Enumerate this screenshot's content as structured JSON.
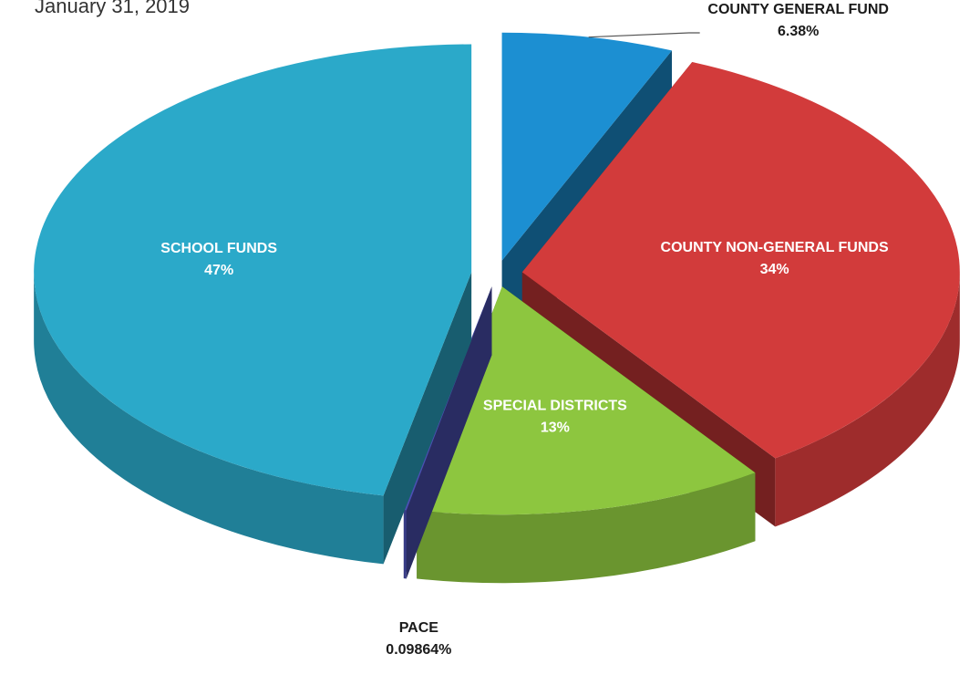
{
  "chart_data": {
    "type": "pie3d",
    "subtitle": "January 31, 2019",
    "categories": [
      "COUNTY GENERAL FUND",
      "COUNTY NON-GENERAL FUNDS",
      "SPECIAL DISTRICTS",
      "PACE",
      "SCHOOL FUNDS"
    ],
    "values": [
      6.38,
      34,
      13,
      0.09864,
      47
    ],
    "value_labels": [
      "6.38%",
      "34%",
      "13%",
      "0.09864%",
      "47%"
    ],
    "colors": [
      "#1c8fd2",
      "#d23b3b",
      "#8dc63f",
      "#4b50b3",
      "#2ba9c9"
    ]
  }
}
